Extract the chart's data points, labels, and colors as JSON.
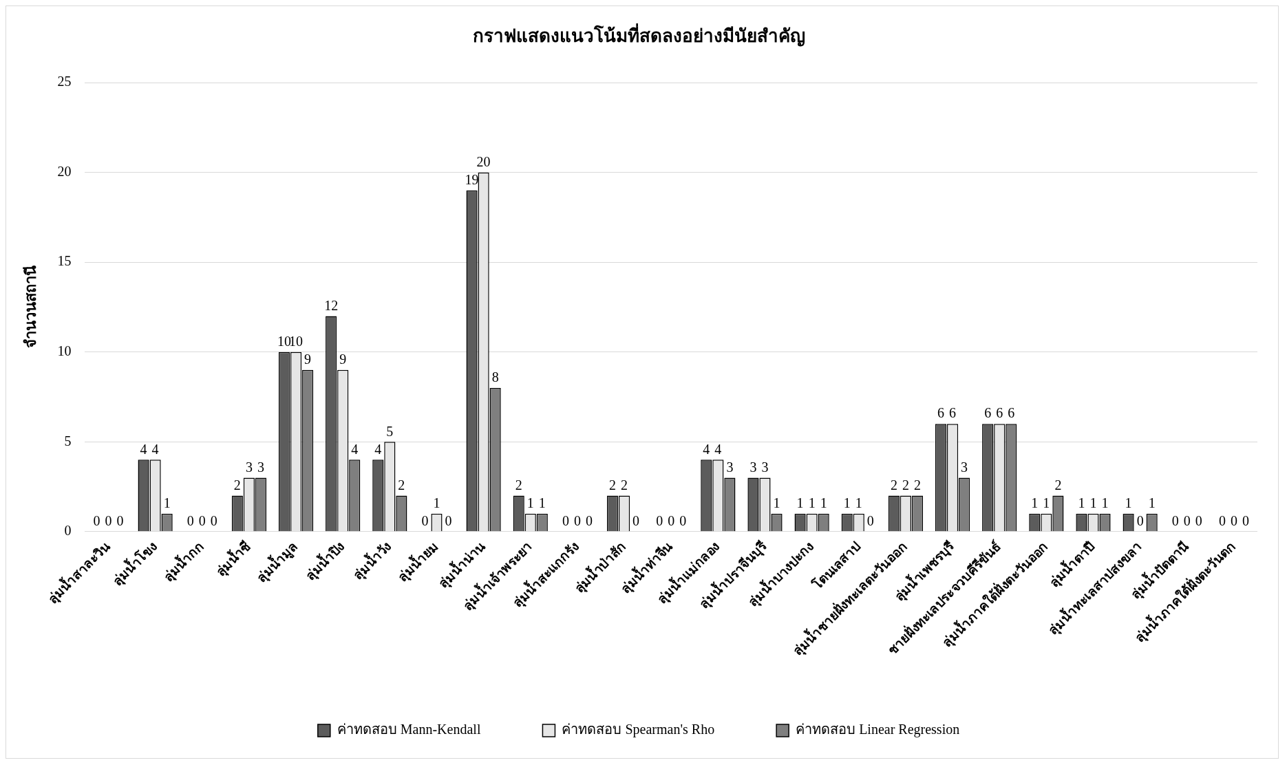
{
  "chart_data": {
    "type": "bar",
    "title": "กราฟแสดงแนวโน้มที่สดลงอย่างมีนัยสำคัญ",
    "ylabel": "จำนวนสถานี",
    "categories": [
      "ลุ่มน้ำสาละวิน",
      "ลุ่มน้ำโขง",
      "ลุ่มน้ำกก",
      "ลุ่มน้ำชี",
      "ลุ่มน้ำมูล",
      "ลุ่มน้ำปิง",
      "ลุ่มน้ำวัง",
      "ลุ่มน้ำยม",
      "ลุ่มน้ำน่าน",
      "ลุ่มน้ำเจ้าพระยา",
      "ลุ่มน้ำสะแกกรัง",
      "ลุ่มน้ำป่าสัก",
      "ลุ่มน้ำท่าจีน",
      "ลุ่มน้ำแม่กลอง",
      "ลุ่มน้ำปราจีนบุรี",
      "ลุ่มน้ำบางปะกง",
      "โตนเลสาป",
      "ลุ่มน้ำชายฝั่งทะเลตะวันออก",
      "ลุ่มน้ำเพชรบุรี",
      "ชายฝั่งทะเลประจวบคีรีขันธ์",
      "ลุ่มน้ำภาคใต้ฝั่งตะวันออก",
      "ลุ่มน้ำตาปี",
      "ลุ่มน้ำทะเลสาปสงขลา",
      "ลุ่มน้ำปัตตานี",
      "ลุ่มน้ำภาคใต้ฝั่งตะวันตก"
    ],
    "series": [
      {
        "name": "ค่าทดสอบ Mann-Kendall",
        "color": "#5c5c5c",
        "values": [
          0,
          4,
          0,
          2,
          10,
          12,
          4,
          0,
          19,
          2,
          0,
          2,
          0,
          4,
          3,
          1,
          1,
          2,
          6,
          6,
          1,
          1,
          1,
          0,
          0
        ]
      },
      {
        "name": "ค่าทดสอบ Spearman's Rho",
        "color": "#e6e6e6",
        "values": [
          0,
          4,
          0,
          3,
          10,
          9,
          5,
          1,
          20,
          1,
          0,
          2,
          0,
          4,
          3,
          1,
          1,
          2,
          6,
          6,
          1,
          1,
          0,
          0,
          0
        ]
      },
      {
        "name": "ค่าทดสอบ Linear Regression",
        "color": "#7f7f7f",
        "values": [
          0,
          1,
          0,
          3,
          9,
          4,
          2,
          0,
          8,
          1,
          0,
          0,
          0,
          3,
          1,
          1,
          0,
          2,
          3,
          6,
          2,
          1,
          1,
          0,
          0
        ]
      }
    ],
    "ylim": [
      0,
      25
    ],
    "yticks": [
      0,
      5,
      10,
      15,
      20,
      25
    ],
    "grid": "y",
    "legend": "bottom",
    "data_labels": true
  }
}
